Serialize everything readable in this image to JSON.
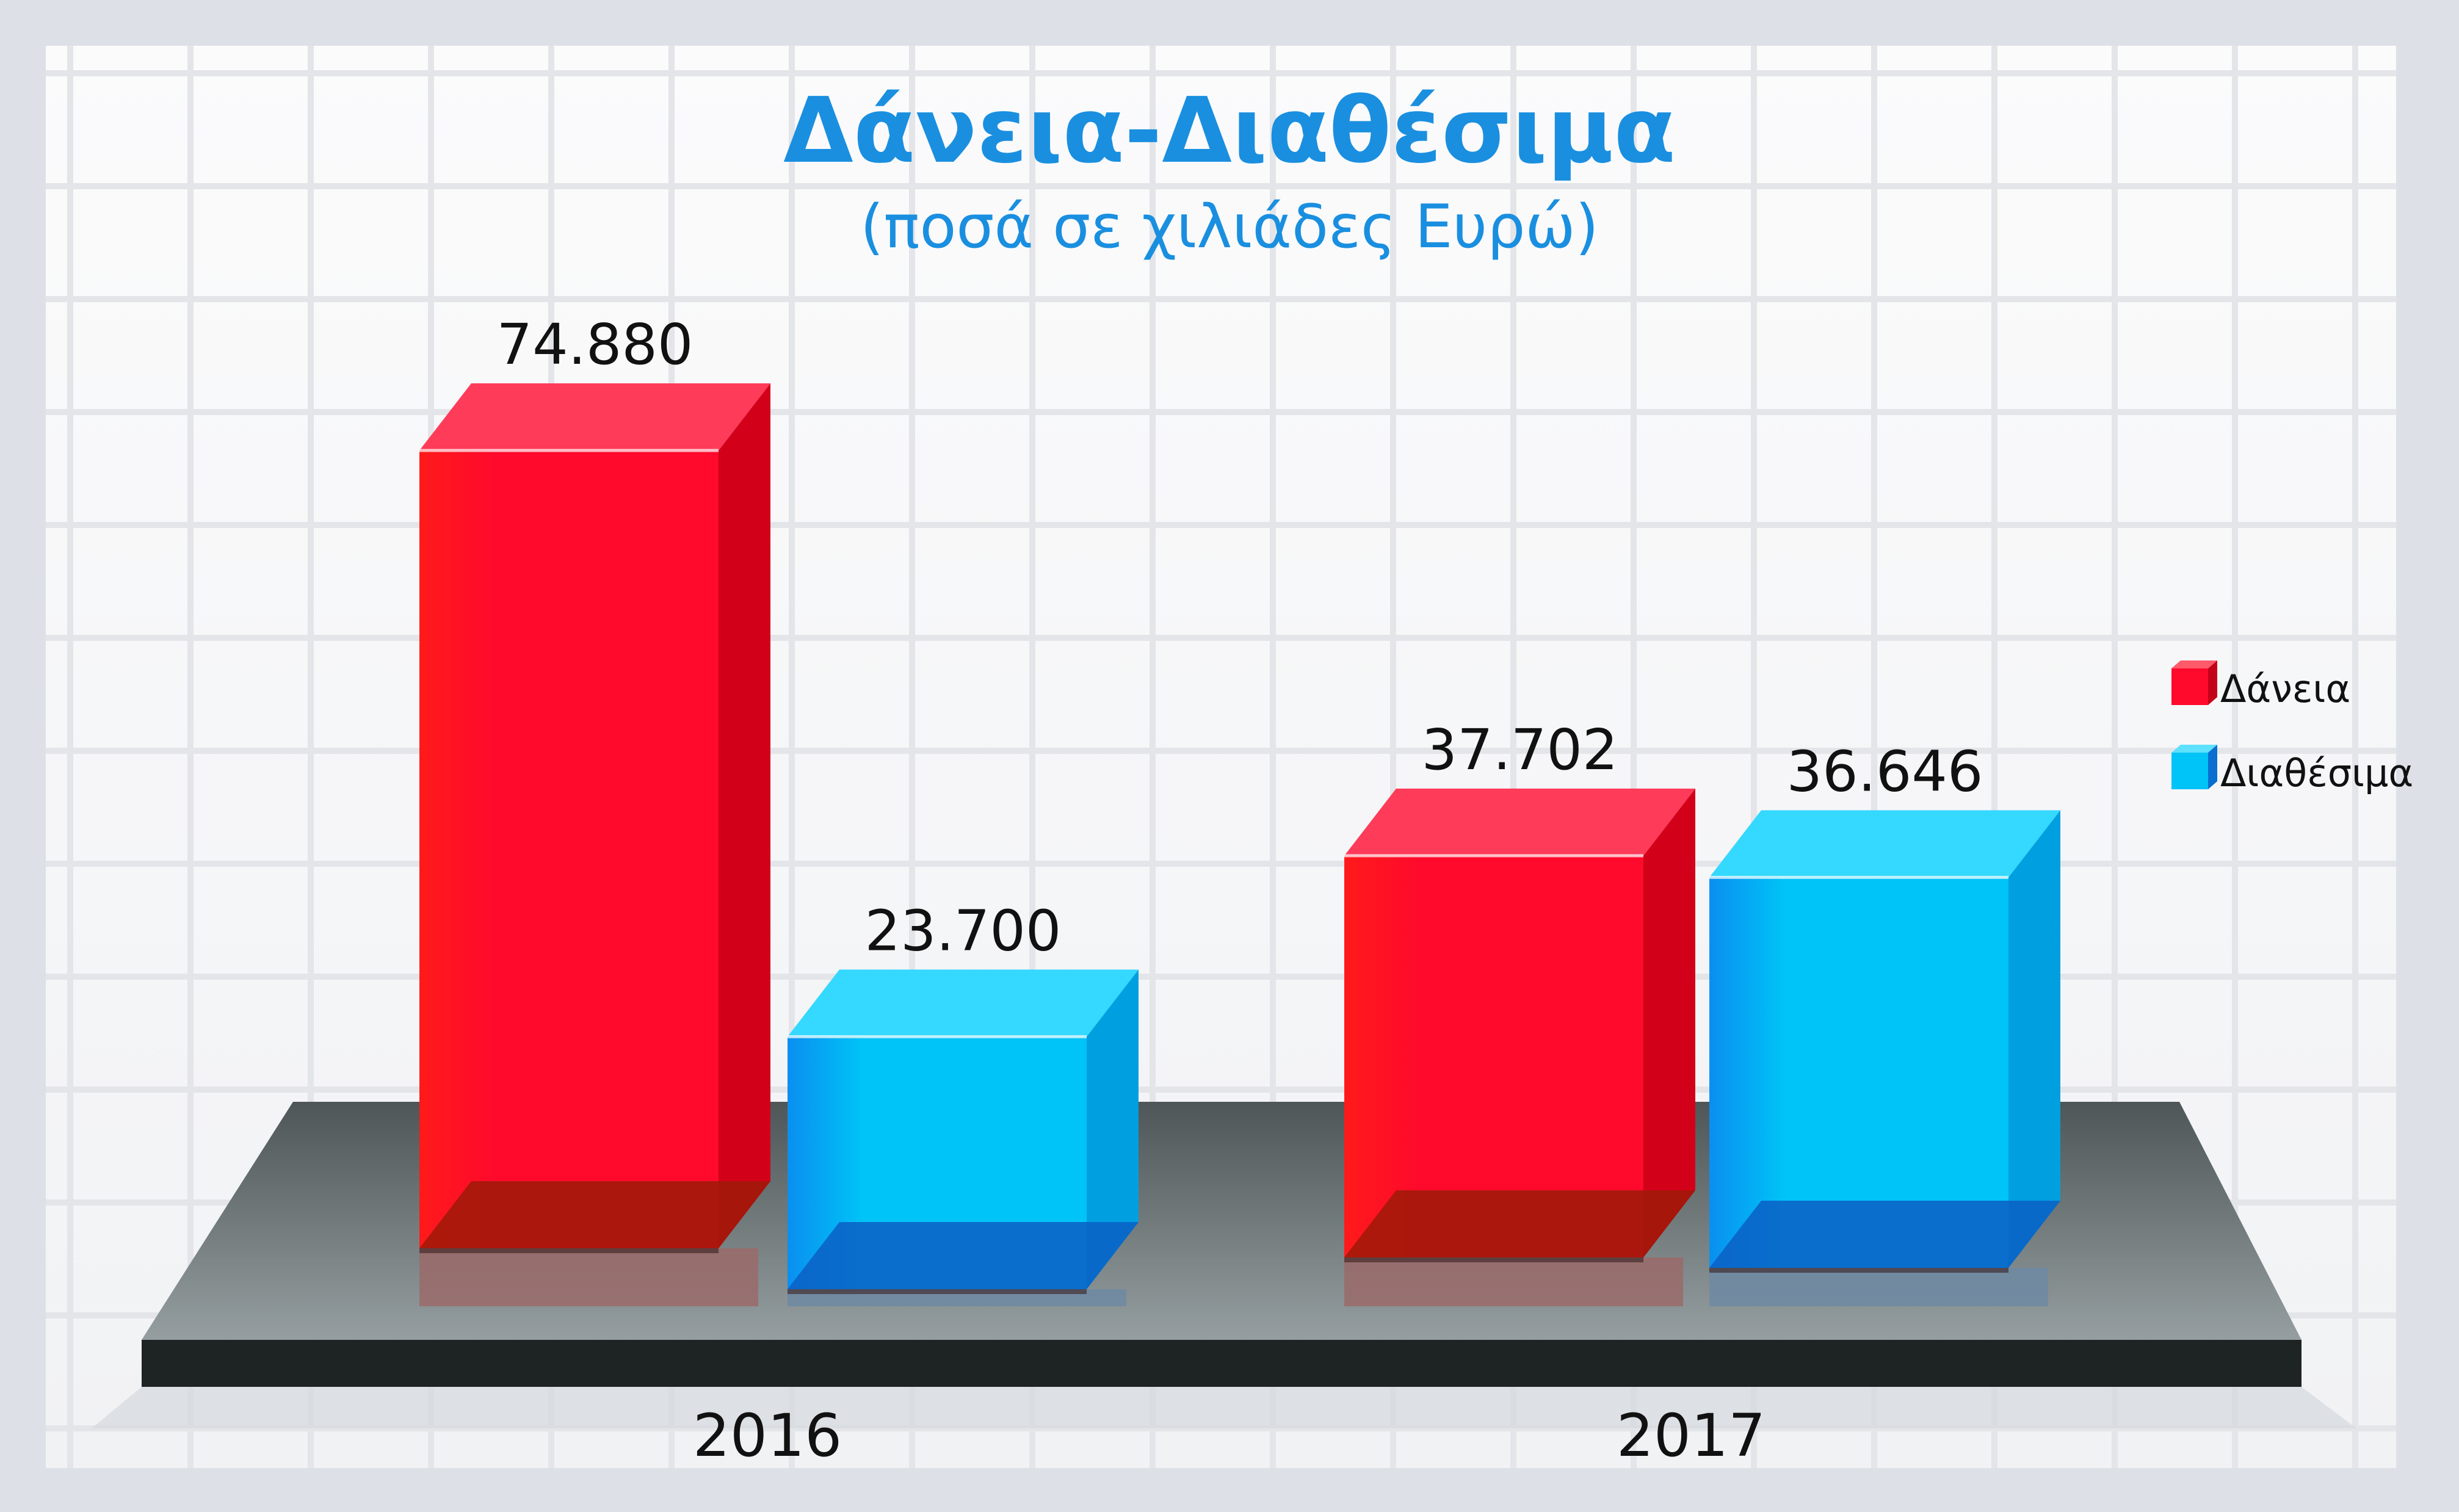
{
  "chart_data": {
    "type": "bar",
    "title": "Δάνεια-Διαθέσιμα",
    "subtitle": "(ποσά σε χιλιάδες Ευρώ)",
    "categories": [
      "2016",
      "2017"
    ],
    "series": [
      {
        "name": "Δάνεια",
        "values": [
          74880,
          37702
        ],
        "labels": [
          "74.880",
          "37.702"
        ]
      },
      {
        "name": "Διαθέσιμα",
        "values": [
          23700,
          36646
        ],
        "labels": [
          "23.700",
          "36.646"
        ]
      }
    ],
    "legend_position": "right",
    "grid": true
  },
  "colors": {
    "loans": "#ff0a2c",
    "loans_side": "#d3001a",
    "loans_top": "#ff3b5a",
    "cash": "#00c3f7",
    "cash_side": "#009fe0",
    "cash_top": "#35d8ff",
    "title": "#1a8fe0",
    "platform": "#7c8588"
  }
}
